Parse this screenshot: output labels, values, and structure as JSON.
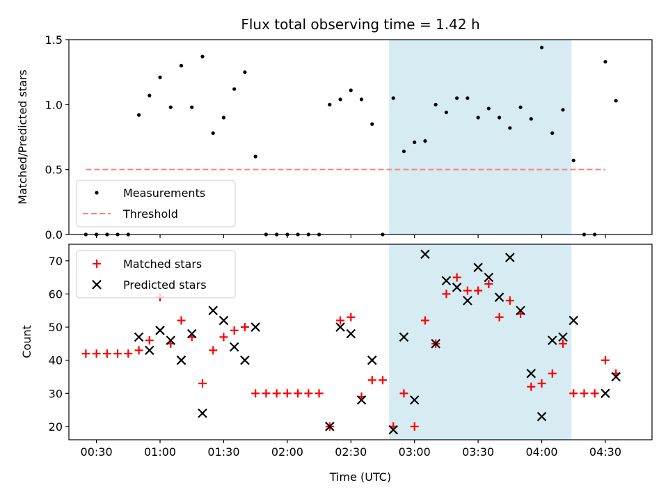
{
  "chart_data": [
    {
      "type": "scatter",
      "title": "Flux total observing time = 1.42 h",
      "xlabel": "",
      "ylabel": "Matched/Predicted stars",
      "ylim": [
        0.0,
        1.5
      ],
      "yticks": [
        "0.0",
        "0.5",
        "1.0",
        "1.5"
      ],
      "xlim": [
        "00:17",
        "04:52"
      ],
      "legend_position": "lower-left",
      "highlight_span": {
        "x": [
          "02:48",
          "04:14"
        ],
        "color": "#add8e6"
      },
      "series": [
        {
          "name": "Measurements",
          "color": "#000000",
          "x": [
            "00:25",
            "00:30",
            "00:35",
            "00:40",
            "00:45",
            "00:50",
            "00:55",
            "01:00",
            "01:05",
            "01:10",
            "01:15",
            "01:20",
            "01:25",
            "01:30",
            "01:35",
            "01:40",
            "01:45",
            "01:50",
            "01:55",
            "02:00",
            "02:05",
            "02:10",
            "02:15",
            "02:20",
            "02:25",
            "02:30",
            "02:35",
            "02:40",
            "02:45",
            "02:50",
            "02:55",
            "03:00",
            "03:05",
            "03:10",
            "03:15",
            "03:20",
            "03:25",
            "03:30",
            "03:35",
            "03:40",
            "03:45",
            "03:50",
            "03:55",
            "04:00",
            "04:05",
            "04:10",
            "04:15",
            "04:20",
            "04:25",
            "04:30",
            "04:35"
          ],
          "values": [
            0.0,
            0.0,
            0.0,
            0.0,
            0.0,
            0.92,
            1.07,
            1.21,
            0.98,
            1.3,
            0.98,
            1.37,
            0.78,
            0.9,
            1.12,
            1.25,
            0.6,
            0.0,
            0.0,
            0.0,
            0.0,
            0.0,
            0.0,
            1.0,
            1.04,
            1.11,
            1.04,
            0.85,
            0.0,
            1.05,
            0.64,
            0.71,
            0.72,
            1.0,
            0.94,
            1.05,
            1.05,
            0.9,
            0.97,
            0.9,
            0.82,
            0.98,
            0.89,
            1.44,
            0.78,
            0.96,
            0.57,
            0.0,
            0.0,
            1.33,
            1.03
          ]
        },
        {
          "name": "Threshold",
          "color": "#ff7f7f",
          "style": "dashed",
          "x": [
            "00:25",
            "04:30"
          ],
          "values": [
            0.5,
            0.5
          ]
        }
      ]
    },
    {
      "type": "scatter",
      "title": "",
      "xlabel": "Time (UTC)",
      "ylabel": "Count",
      "ylim": [
        16,
        75
      ],
      "yticks": [
        "20",
        "30",
        "40",
        "50",
        "60",
        "70"
      ],
      "xlim": [
        "00:17",
        "04:52"
      ],
      "xticks": [
        "00:30",
        "01:00",
        "01:30",
        "02:00",
        "02:30",
        "03:00",
        "03:30",
        "04:00",
        "04:30"
      ],
      "legend_position": "upper-left",
      "highlight_span": {
        "x": [
          "02:48",
          "04:14"
        ],
        "color": "#add8e6"
      },
      "series": [
        {
          "name": "Matched stars",
          "color": "#ff0000",
          "marker": "plus",
          "x": [
            "00:25",
            "00:30",
            "00:35",
            "00:40",
            "00:45",
            "00:50",
            "00:55",
            "01:00",
            "01:05",
            "01:10",
            "01:15",
            "01:20",
            "01:25",
            "01:30",
            "01:35",
            "01:40",
            "01:45",
            "01:50",
            "01:55",
            "02:00",
            "02:05",
            "02:10",
            "02:15",
            "02:20",
            "02:25",
            "02:30",
            "02:35",
            "02:40",
            "02:45",
            "02:50",
            "02:55",
            "03:00",
            "03:05",
            "03:10",
            "03:15",
            "03:20",
            "03:25",
            "03:30",
            "03:35",
            "03:40",
            "03:45",
            "03:50",
            "03:55",
            "04:00",
            "04:05",
            "04:10",
            "04:15",
            "04:20",
            "04:25",
            "04:30",
            "04:35"
          ],
          "values": [
            42,
            42,
            42,
            42,
            42,
            43,
            46,
            59,
            45,
            52,
            47,
            33,
            43,
            47,
            49,
            50,
            30,
            30,
            30,
            30,
            30,
            30,
            30,
            20,
            52,
            53,
            29,
            34,
            34,
            20,
            30,
            20,
            52,
            45,
            60,
            65,
            61,
            61,
            63,
            53,
            58,
            54,
            32,
            33,
            36,
            45,
            30,
            30,
            30,
            40,
            36
          ]
        },
        {
          "name": "Predicted stars",
          "color": "#000000",
          "marker": "x",
          "x": [
            "00:50",
            "00:55",
            "01:00",
            "01:05",
            "01:10",
            "01:15",
            "01:20",
            "01:25",
            "01:30",
            "01:35",
            "01:40",
            "01:45",
            "02:20",
            "02:25",
            "02:30",
            "02:35",
            "02:40",
            "02:50",
            "02:55",
            "03:00",
            "03:05",
            "03:10",
            "03:15",
            "03:20",
            "03:25",
            "03:30",
            "03:35",
            "03:40",
            "03:45",
            "03:50",
            "03:55",
            "04:00",
            "04:05",
            "04:10",
            "04:15",
            "04:30",
            "04:35"
          ],
          "values": [
            47,
            43,
            49,
            46,
            40,
            48,
            24,
            55,
            52,
            44,
            40,
            50,
            20,
            50,
            48,
            28,
            40,
            19,
            47,
            28,
            72,
            45,
            64,
            62,
            58,
            68,
            65,
            59,
            71,
            55,
            36,
            23,
            46,
            47,
            52,
            30,
            35
          ]
        }
      ]
    }
  ]
}
